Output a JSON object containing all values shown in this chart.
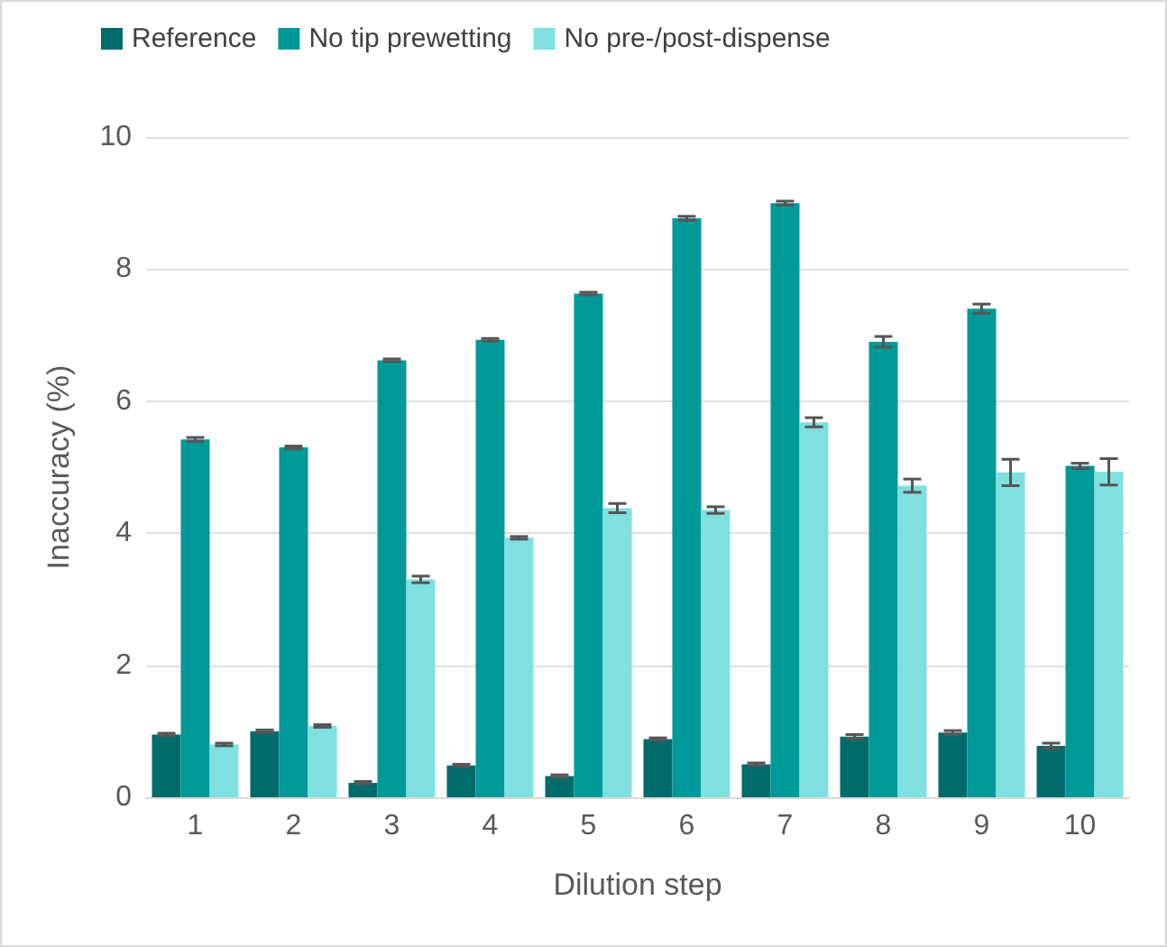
{
  "chart_data": {
    "type": "bar",
    "xlabel": "Dilution step",
    "ylabel": "Inaccuracy (%)",
    "categories": [
      "1",
      "2",
      "3",
      "4",
      "5",
      "6",
      "7",
      "8",
      "9",
      "10"
    ],
    "series": [
      {
        "name": "Reference",
        "color": "#006b6b",
        "values": [
          0.95,
          1.0,
          0.22,
          0.48,
          0.32,
          0.88,
          0.5,
          0.92,
          0.98,
          0.78
        ],
        "errors": [
          0.02,
          0.02,
          0.02,
          0.02,
          0.02,
          0.02,
          0.02,
          0.03,
          0.03,
          0.04
        ]
      },
      {
        "name": "No tip prewetting",
        "color": "#009999",
        "values": [
          5.42,
          5.3,
          6.62,
          6.93,
          7.63,
          8.77,
          9.0,
          6.9,
          7.4,
          5.02
        ],
        "errors": [
          0.03,
          0.02,
          0.02,
          0.02,
          0.02,
          0.03,
          0.03,
          0.08,
          0.07,
          0.04
        ]
      },
      {
        "name": "No pre-/post-dispense",
        "color": "#80e0e0",
        "values": [
          0.8,
          1.08,
          3.3,
          3.93,
          4.38,
          4.35,
          5.68,
          4.72,
          4.92,
          4.93
        ],
        "errors": [
          0.02,
          0.02,
          0.05,
          0.02,
          0.07,
          0.05,
          0.07,
          0.1,
          0.2,
          0.2
        ]
      }
    ],
    "ylim": [
      0,
      10
    ],
    "yticks": [
      0,
      2,
      4,
      6,
      8,
      10
    ],
    "grid": "y",
    "legend": "top left"
  }
}
